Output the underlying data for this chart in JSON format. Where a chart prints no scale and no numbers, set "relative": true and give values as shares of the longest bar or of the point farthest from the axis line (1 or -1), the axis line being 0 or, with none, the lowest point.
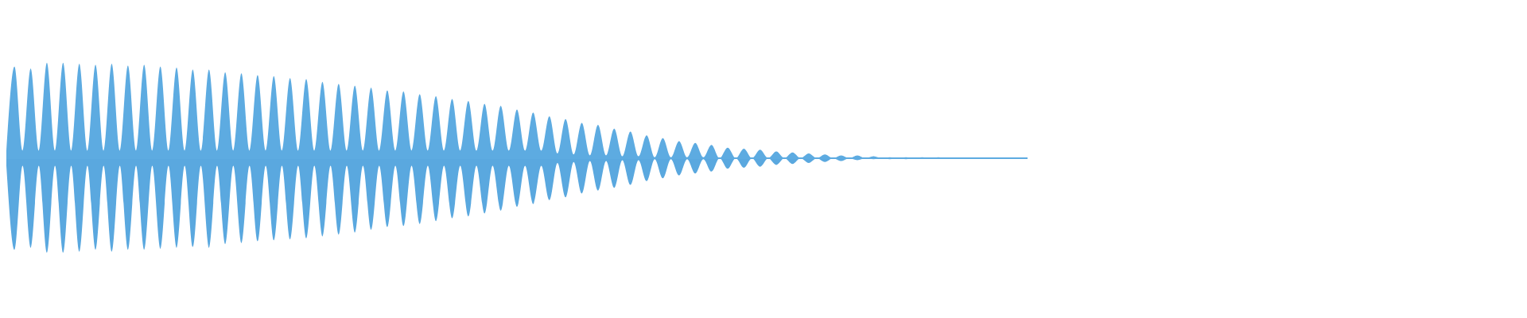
{
  "chart_data": {
    "type": "area",
    "relative": true,
    "ref_lines": [
      {
        "axis": "y",
        "value": 0,
        "color": "#5dabe1"
      }
    ],
    "categories": [
      null,
      null,
      null,
      null,
      null,
      null,
      null,
      null,
      null,
      null,
      null,
      null,
      null,
      null,
      null,
      null,
      null,
      null,
      null,
      null,
      null,
      null,
      null,
      null,
      null,
      null,
      null,
      null,
      null,
      null,
      null,
      null,
      null,
      null,
      null,
      null,
      null,
      null,
      null,
      null,
      null,
      null,
      null,
      null,
      null,
      null,
      null,
      null,
      null,
      null,
      null,
      null,
      null,
      null,
      null,
      null,
      null,
      null,
      null,
      null,
      null,
      null,
      null,
      null,
      null,
      null,
      null,
      null,
      null,
      null,
      null,
      null,
      null,
      null,
      null,
      null,
      null,
      null,
      null,
      null,
      null,
      null,
      null,
      null,
      null,
      null,
      null,
      null,
      null,
      null,
      null,
      null,
      null,
      null,
      null,
      null,
      null,
      null,
      null,
      null,
      null,
      null,
      null,
      null,
      null,
      null,
      null,
      null,
      null,
      null,
      null,
      null,
      null,
      null,
      null,
      null,
      null,
      null,
      null,
      null,
      null,
      null,
      null,
      null,
      null,
      null,
      null
    ],
    "series": [
      {
        "color": "#5dabe1",
        "values": [
          0.08,
          0.96,
          0.08,
          0.94,
          0.08,
          1,
          0.08,
          1,
          0.08,
          0.99,
          0.08,
          0.98,
          0.08,
          0.99,
          0.08,
          0.97,
          0.08,
          0.98,
          0.08,
          0.96,
          0.08,
          0.95,
          0.08,
          0.93,
          0.08,
          0.93,
          0.08,
          0.9,
          0.08,
          0.89,
          0.08,
          0.87,
          0.08,
          0.86,
          0.08,
          0.84,
          0.08,
          0.83,
          0.08,
          0.8,
          0.08,
          0.78,
          0.08,
          0.76,
          0.08,
          0.74,
          0.08,
          0.71,
          0.08,
          0.7,
          0.08,
          0.67,
          0.08,
          0.65,
          0.08,
          0.62,
          0.08,
          0.6,
          0.08,
          0.57,
          0.08,
          0.55,
          0.08,
          0.51,
          0.08,
          0.48,
          0.08,
          0.44,
          0.05,
          0.41,
          0.04,
          0.37,
          0.03,
          0.35,
          0.03,
          0.31,
          0.02,
          0.28,
          0.02,
          0.24,
          0.01,
          0.21,
          0.01,
          0.18,
          0.01,
          0.16,
          0.01,
          0.14,
          0,
          0.11,
          0,
          0.1,
          0,
          0.09,
          0,
          0.07,
          0,
          0.06,
          0,
          0.05,
          0,
          0.04,
          0,
          0.03,
          0,
          0.03,
          0,
          0.02,
          0,
          0.01,
          0,
          0.01,
          0,
          0.01,
          0,
          0.01,
          0,
          0.005,
          0,
          0.005,
          0,
          0.005,
          0,
          0.005,
          0,
          0.005,
          0
        ]
      },
      {
        "color": "#5aa8df",
        "values": [
          -0.08,
          -0.96,
          -0.08,
          -0.94,
          -0.08,
          -0.99,
          -0.08,
          -0.99,
          -0.08,
          -0.98,
          -0.08,
          -0.96,
          -0.08,
          -0.98,
          -0.08,
          -0.96,
          -0.08,
          -0.96,
          -0.08,
          -0.95,
          -0.08,
          -0.94,
          -0.08,
          -0.93,
          -0.08,
          -0.94,
          -0.08,
          -0.9,
          -0.08,
          -0.89,
          -0.08,
          -0.87,
          -0.08,
          -0.86,
          -0.08,
          -0.85,
          -0.08,
          -0.84,
          -0.08,
          -0.82,
          -0.08,
          -0.8,
          -0.08,
          -0.78,
          -0.08,
          -0.75,
          -0.08,
          -0.72,
          -0.08,
          -0.71,
          -0.08,
          -0.69,
          -0.08,
          -0.66,
          -0.08,
          -0.63,
          -0.08,
          -0.61,
          -0.08,
          -0.58,
          -0.08,
          -0.55,
          -0.08,
          -0.51,
          -0.08,
          -0.48,
          -0.08,
          -0.44,
          -0.05,
          -0.41,
          -0.04,
          -0.37,
          -0.03,
          -0.34,
          -0.03,
          -0.31,
          -0.02,
          -0.28,
          -0.02,
          -0.24,
          -0.01,
          -0.21,
          -0.01,
          -0.18,
          -0.01,
          -0.16,
          -0.01,
          -0.14,
          0,
          -0.11,
          0,
          -0.1,
          0,
          -0.09,
          0,
          -0.07,
          0,
          -0.06,
          0,
          -0.05,
          0,
          -0.04,
          0,
          -0.03,
          0,
          -0.02,
          0,
          -0.01,
          0,
          -0.01,
          0,
          -0.01,
          0,
          -0.005,
          0,
          -0.005,
          0,
          -0.005,
          0,
          -0.005,
          0,
          -0.005,
          0,
          -0.005,
          0,
          -0.005,
          0
        ]
      }
    ]
  }
}
